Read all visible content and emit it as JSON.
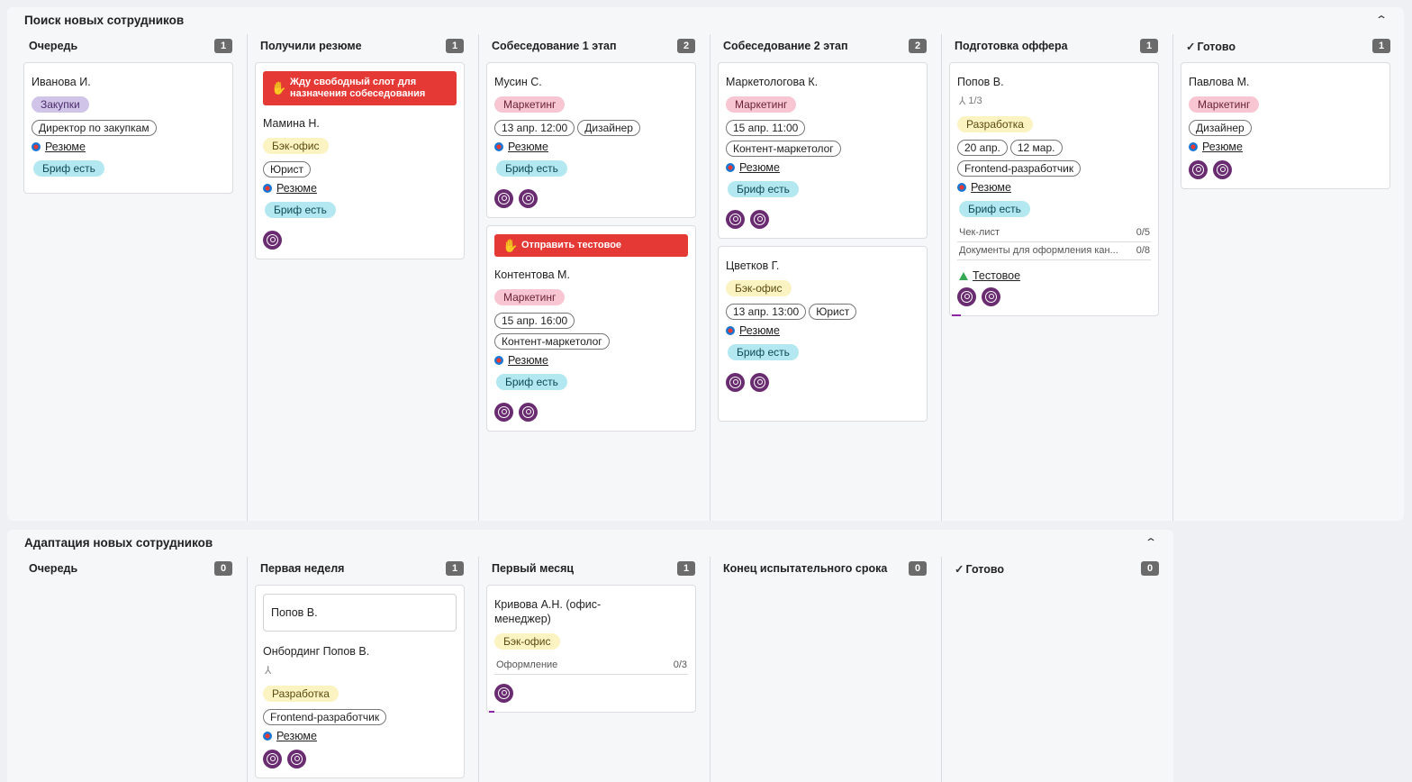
{
  "board1": {
    "title": "Поиск новых сотрудников",
    "collapse": "⌃",
    "columns": [
      {
        "title": "Очередь",
        "count": "1",
        "cards": [
          {
            "name": "Иванова И.",
            "tag": "Закупки",
            "chips": [
              "Директор по закупкам"
            ],
            "resume": "Резюме",
            "brief": "Бриф есть"
          }
        ]
      },
      {
        "title": "Получили резюме",
        "count": "1",
        "cards": [
          {
            "banner": "Жду свободный слот для назначения собеседования",
            "name": "Мамина Н.",
            "tag": "Бэк-офис",
            "chips": [
              "Юрист"
            ],
            "resume": "Резюме",
            "brief": "Бриф есть"
          }
        ]
      },
      {
        "title": "Собеседование 1 этап",
        "count": "2",
        "cards": [
          {
            "name": "Мусин С.",
            "tag": "Маркетинг",
            "chips": [
              "13 апр. 12:00",
              "Дизайнер"
            ],
            "resume": "Резюме",
            "brief": "Бриф есть"
          },
          {
            "banner": "Отправить тестовое",
            "name": "Контентова М.",
            "tag": "Маркетинг",
            "chips": [
              "15 апр. 16:00",
              "Контент-маркетолог"
            ],
            "resume": "Резюме",
            "brief": "Бриф есть"
          }
        ]
      },
      {
        "title": "Собеседование 2 этап",
        "count": "2",
        "cards": [
          {
            "name": "Маркетологова К.",
            "tag": "Маркетинг",
            "chips": [
              "15 апр. 11:00",
              "Контент-маркетолог"
            ],
            "resume": "Резюме",
            "brief": "Бриф есть"
          },
          {
            "name": "Цветков Г.",
            "tag": "Бэк-офис",
            "chips": [
              "13 апр. 13:00",
              "Юрист"
            ],
            "resume": "Резюме",
            "brief": "Бриф есть"
          }
        ]
      },
      {
        "title": "Подготовка оффера",
        "count": "1",
        "cards": [
          {
            "name": "Попов В.",
            "subtasks": "1/3",
            "tag": "Разработка",
            "chips": [
              "20 апр.",
              "12 мар.",
              "Frontend-разработчик"
            ],
            "resume": "Резюме",
            "brief": "Бриф есть",
            "checklists": [
              {
                "label": "Чек-лист",
                "value": "0/5"
              },
              {
                "label": "Документы для оформления кан...",
                "value": "0/8"
              }
            ],
            "attachment": "Тестовое"
          }
        ]
      },
      {
        "title": "Готово",
        "count": "1",
        "check": "✓",
        "cards": [
          {
            "name": "Павлова М.",
            "tag": "Маркетинг",
            "chips": [
              "Дизайнер"
            ],
            "resume": "Резюме"
          }
        ]
      }
    ]
  },
  "board2": {
    "title": "Адаптация новых сотрудников",
    "collapse": "⌃",
    "columns": [
      {
        "title": "Очередь",
        "count": "0"
      },
      {
        "title": "Первая неделя",
        "count": "1",
        "card": {
          "inner": "Попов В.",
          "name": "Онбординг Попов В.",
          "tag": "Разработка",
          "chips": [
            "Frontend-разработчик"
          ],
          "resume": "Резюме"
        }
      },
      {
        "title": "Первый месяц",
        "count": "1",
        "card": {
          "name": "Кривова А.Н. (офис-менеджер)",
          "tag": "Бэк-офис",
          "checklist": {
            "label": "Оформление",
            "value": "0/3"
          }
        }
      },
      {
        "title": "Конец испытательного срока",
        "count": "0"
      },
      {
        "title": "Готово",
        "count": "0",
        "check": "✓"
      }
    ]
  },
  "colors": {
    "banner": "#e53935",
    "avatar": "#6a2c70",
    "count_badge": "#6b6b6b"
  }
}
